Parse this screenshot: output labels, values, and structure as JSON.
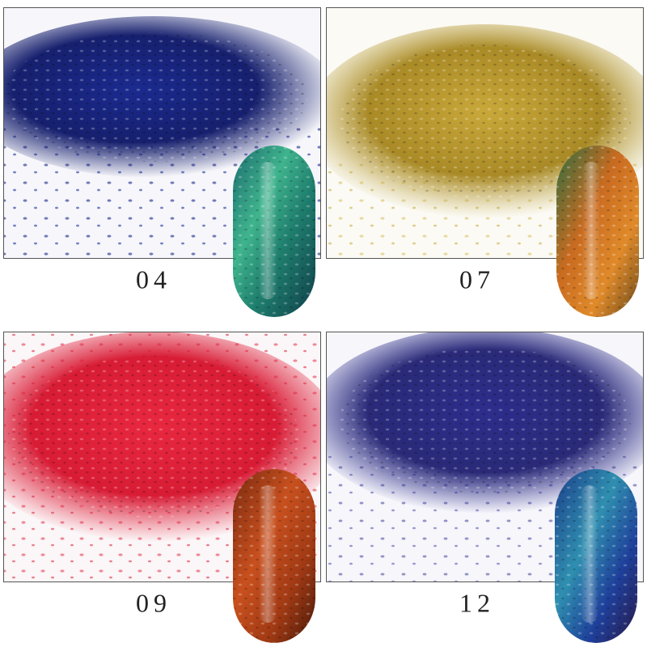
{
  "panels": [
    {
      "label": "04"
    },
    {
      "label": "07"
    },
    {
      "label": "09"
    },
    {
      "label": "12"
    }
  ]
}
